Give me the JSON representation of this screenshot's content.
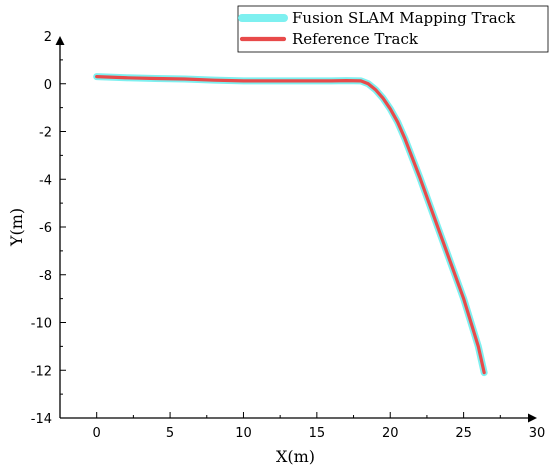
{
  "chart_data": {
    "type": "line",
    "title": "",
    "xlabel": "X(m)",
    "ylabel": "Y(m)",
    "xlim": [
      -2.5,
      30
    ],
    "ylim": [
      -14,
      2
    ],
    "xticks": [
      0,
      5,
      10,
      15,
      20,
      25,
      30
    ],
    "yticks": [
      2,
      0,
      -2,
      -4,
      -6,
      -8,
      -10,
      -12,
      -14
    ],
    "grid": false,
    "legend_position": "top-right",
    "series": [
      {
        "name": "Fusion SLAM Mapping Track",
        "color": "#7ef0f0",
        "x": [
          0,
          2,
          4,
          6,
          8,
          10,
          12,
          14,
          16,
          17,
          18,
          18.5,
          19,
          19.5,
          20,
          20.5,
          21,
          22,
          23,
          24,
          25,
          26,
          26.4
        ],
        "y": [
          0.3,
          0.25,
          0.22,
          0.2,
          0.15,
          0.12,
          0.12,
          0.12,
          0.12,
          0.13,
          0.12,
          0.0,
          -0.25,
          -0.6,
          -1.05,
          -1.6,
          -2.3,
          -3.9,
          -5.6,
          -7.3,
          -9.0,
          -11.0,
          -12.1
        ]
      },
      {
        "name": "Reference Track",
        "color": "#e84a4a",
        "x": [
          0,
          2,
          4,
          6,
          8,
          10,
          12,
          14,
          16,
          17,
          18,
          18.5,
          19,
          19.5,
          20,
          20.5,
          21,
          22,
          23,
          24,
          25,
          26,
          26.4
        ],
        "y": [
          0.3,
          0.25,
          0.22,
          0.2,
          0.15,
          0.12,
          0.12,
          0.12,
          0.12,
          0.13,
          0.12,
          0.0,
          -0.25,
          -0.6,
          -1.05,
          -1.6,
          -2.3,
          -3.9,
          -5.6,
          -7.3,
          -9.0,
          -11.0,
          -12.1
        ]
      }
    ]
  }
}
